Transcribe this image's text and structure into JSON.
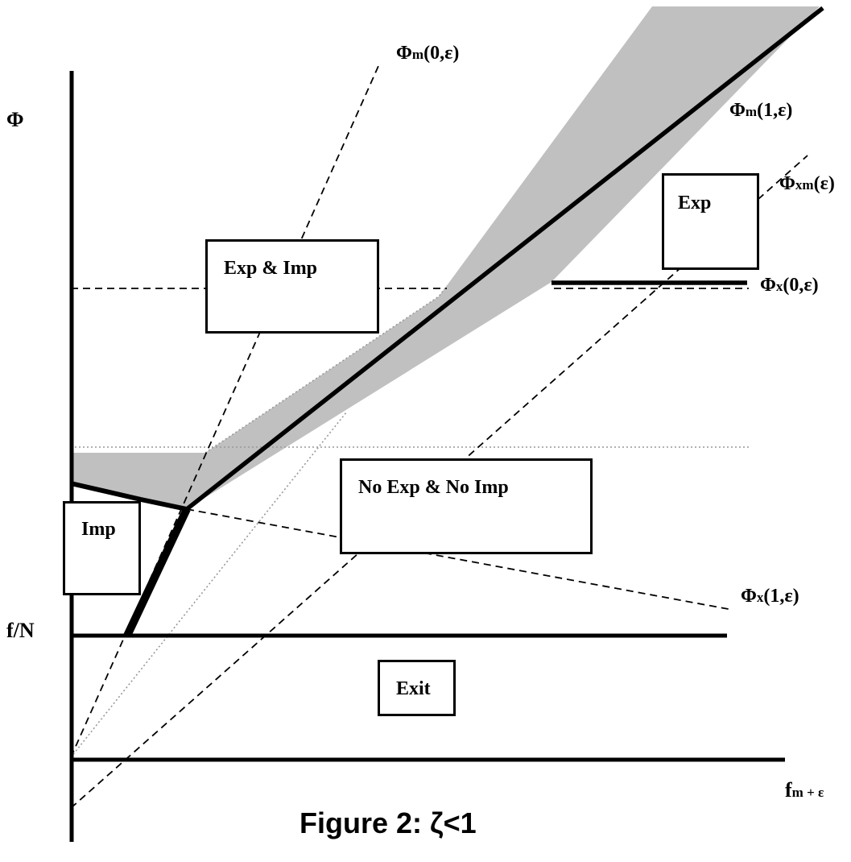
{
  "axes": {
    "y_label": "Φ",
    "fn_label": "f/N",
    "x_label_main": "f",
    "x_label_sub": "m + ε"
  },
  "curves": {
    "phi_m0": {
      "main": "Φ",
      "sub": "m",
      "arg": "(0,ε)"
    },
    "phi_m1": {
      "main": "Φ",
      "sub": "m",
      "arg": "(1,ε)"
    },
    "phi_xm": {
      "main": "Φ",
      "sub": "xm",
      "arg": "(ε)"
    },
    "phi_x0": {
      "main": "Φ",
      "sub": "x",
      "arg": "(0,ε)"
    },
    "phi_x1": {
      "main": "Φ",
      "sub": "x",
      "arg": "(1,ε)"
    }
  },
  "regions": {
    "exp_imp": "Exp & Imp",
    "exp": "Exp",
    "no_exp_no_imp": "No Exp & No Imp",
    "imp": "Imp",
    "exit": "Exit"
  },
  "caption": "Figure 2:  ζ<1",
  "colors": {
    "shaded": "#c0c0c0",
    "line": "#000000",
    "dotted": "#999999"
  }
}
